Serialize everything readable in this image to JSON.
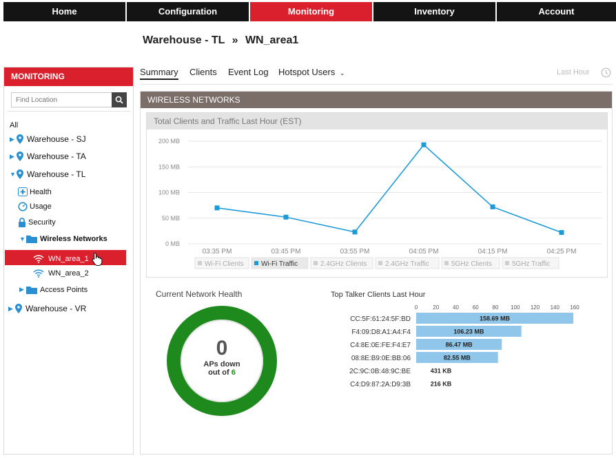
{
  "nav": {
    "tabs": [
      {
        "label": "Home"
      },
      {
        "label": "Configuration"
      },
      {
        "label": "Monitoring"
      },
      {
        "label": "Inventory"
      },
      {
        "label": "Account"
      }
    ],
    "active": "Monitoring",
    "active_color": "#d9202c"
  },
  "breadcrumb": {
    "parent": "Warehouse - TL",
    "separator": "»",
    "current": "WN_area1"
  },
  "sidebar": {
    "title": "MONITORING",
    "search_placeholder": "Find Location",
    "all_label": "All",
    "items": [
      {
        "label": "Warehouse - SJ"
      },
      {
        "label": "Warehouse - TA"
      },
      {
        "label": "Warehouse - TL"
      },
      {
        "label": "Health"
      },
      {
        "label": "Usage"
      },
      {
        "label": "Security"
      },
      {
        "label": "Wireless Networks"
      },
      {
        "label": "WN_area_1"
      },
      {
        "label": "WN_area_2"
      },
      {
        "label": "Access Points"
      },
      {
        "label": "Warehouse - VR"
      }
    ],
    "selected": "WN_area_1"
  },
  "subtabs": [
    {
      "label": "Summary"
    },
    {
      "label": "Clients"
    },
    {
      "label": "Event Log"
    },
    {
      "label": "Hotspot Users"
    }
  ],
  "time_range": "Last Hour",
  "panel_title": "WIRELESS NETWORKS",
  "chart_data": [
    {
      "type": "line",
      "title": "Total Clients and Traffic Last Hour (EST)",
      "x": [
        "03:35 PM",
        "03:45 PM",
        "03:55 PM",
        "04:05 PM",
        "04:15 PM",
        "04:25 PM"
      ],
      "y_ticks": [
        "0 MB",
        "50 MB",
        "100 MB",
        "150 MB",
        "200 MB"
      ],
      "ylim": [
        0,
        200
      ],
      "series": [
        {
          "name": "Wi-Fi Traffic",
          "values": [
            70,
            52,
            23,
            193,
            72,
            22
          ],
          "color": "#1e9bd7"
        }
      ],
      "legend": [
        "Wi-Fi Clients",
        "Wi-Fi Traffic",
        "2.4GHz Clients",
        "2.4GHz Traffic",
        "5GHz Clients",
        "5GHz Traffic"
      ],
      "legend_active": "Wi-Fi Traffic",
      "legend_position": "bottom",
      "grid": true
    },
    {
      "type": "bar",
      "orientation": "horizontal",
      "title": "Top Talker Clients Last Hour",
      "x_ticks": [
        "0",
        "20",
        "40",
        "60",
        "80",
        "100",
        "120",
        "140",
        "160"
      ],
      "xlim": [
        0,
        160
      ],
      "categories": [
        "CC:5F:61:24:5F:BD",
        "F4:09:D8:A1:A4:F4",
        "C4:8E:0E:FE:F4:E7",
        "08:8E:B9:0E:BB:06",
        "2C:9C:0B:48:9C:BE",
        "C4:D9:87:2A:D9:3B"
      ],
      "values": [
        158.69,
        106.23,
        86.47,
        82.55,
        0.431,
        0.216
      ],
      "data_labels": [
        "158.69 MB",
        "106.23 MB",
        "86.47 MB",
        "82.55 MB",
        "431 KB",
        "216 KB"
      ],
      "color": "#8fc6ea"
    }
  ],
  "health": {
    "title": "Current Network Health",
    "count": "0",
    "line1": "APs down",
    "line2_prefix": "out of",
    "total": "6",
    "ring_color": "#1e8a1e"
  }
}
